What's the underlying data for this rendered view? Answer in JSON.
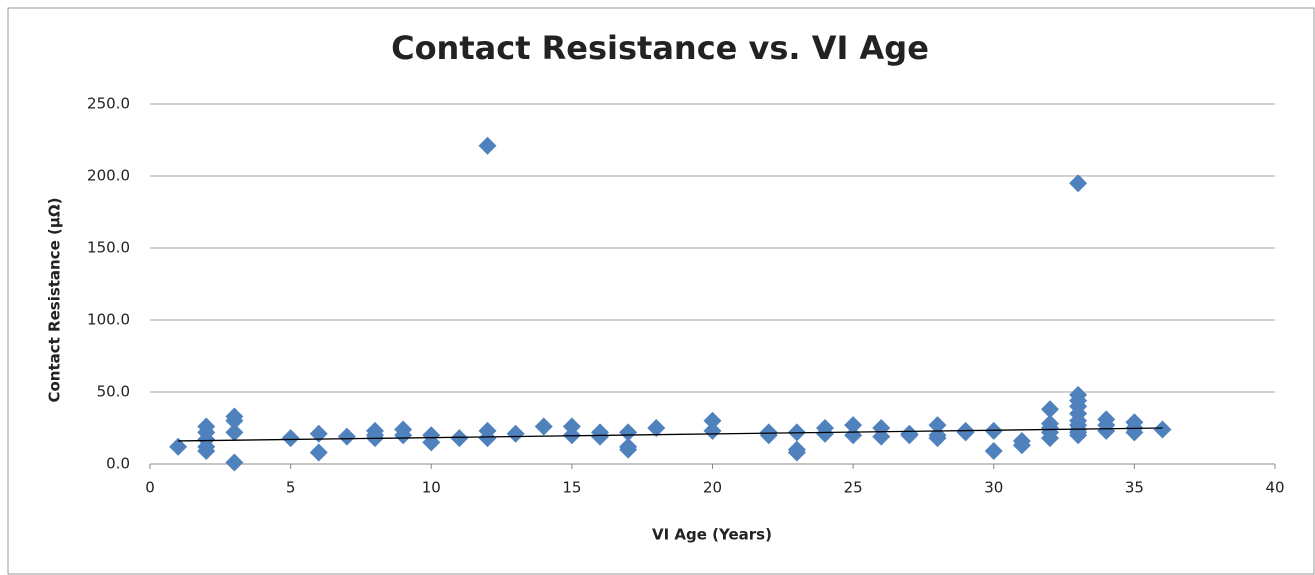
{
  "chart_data": {
    "type": "scatter",
    "title": "Contact Resistance vs. VI Age",
    "x_label": "VI Age (Years)",
    "y_label": "Contact Resistance (μΩ)",
    "color": "#4f81bd",
    "trend_color": "#000000",
    "grid": true,
    "xlim": [
      0,
      40
    ],
    "xticks": [
      0,
      5,
      10,
      15,
      20,
      25,
      30,
      35,
      40
    ],
    "ylim": [
      0,
      250
    ],
    "yticks": [
      {
        "value": 0,
        "label": "0.0"
      },
      {
        "value": 50,
        "label": "50.0"
      },
      {
        "value": 100,
        "label": "100.0"
      },
      {
        "value": 150,
        "label": "150.0"
      },
      {
        "value": 200,
        "label": "200.0"
      },
      {
        "value": 250,
        "label": "250.0"
      }
    ],
    "x": [
      1,
      2,
      2,
      2,
      2,
      2,
      3,
      3,
      3,
      3,
      5,
      6,
      6,
      7,
      8,
      8,
      8,
      9,
      9,
      10,
      10,
      11,
      12,
      12,
      12,
      13,
      14,
      15,
      15,
      16,
      16,
      17,
      17,
      17,
      18,
      20,
      20,
      22,
      22,
      23,
      23,
      23,
      24,
      24,
      25,
      25,
      26,
      26,
      27,
      27,
      28,
      28,
      28,
      29,
      29,
      30,
      30,
      31,
      31,
      32,
      32,
      32,
      32,
      32,
      33,
      33,
      33,
      33,
      33,
      33,
      33,
      33,
      33,
      33,
      34,
      34,
      34,
      35,
      35,
      35,
      36
    ],
    "values": [
      12,
      26,
      22,
      17,
      12,
      9,
      33,
      30,
      22,
      1,
      18,
      21,
      8,
      19,
      23,
      20,
      18,
      24,
      20,
      20,
      15,
      18,
      221,
      23,
      18,
      21,
      26,
      26,
      20,
      22,
      19,
      22,
      12,
      10,
      25,
      30,
      23,
      22,
      20,
      22,
      10,
      8,
      25,
      21,
      27,
      20,
      25,
      19,
      21,
      20,
      27,
      20,
      18,
      23,
      22,
      23,
      9,
      16,
      13,
      38,
      28,
      25,
      22,
      18,
      195,
      48,
      44,
      40,
      35,
      30,
      27,
      24,
      22,
      20,
      31,
      27,
      23,
      29,
      25,
      22,
      24
    ],
    "trendline": {
      "x": [
        1,
        36
      ],
      "values": [
        16,
        25
      ]
    }
  }
}
